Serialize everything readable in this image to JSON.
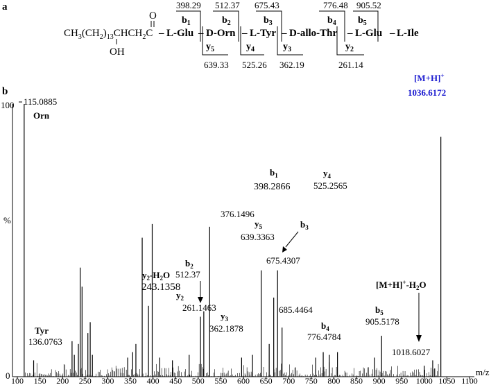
{
  "panel_a": {
    "label": "a",
    "chain": [
      "CH",
      "3",
      "(CH",
      "2",
      ")",
      "13",
      "CHCH",
      "2",
      "C"
    ],
    "oxygen": "O",
    "hydroxyl": "OH",
    "residues": [
      "L-Glu",
      "D-Orn",
      "L-Tyr",
      "D-allo-Thr",
      "L-Glu",
      "L-Ile"
    ],
    "separator": "–",
    "b_ions": [
      {
        "label": "b",
        "sub": "1",
        "value": "398.29"
      },
      {
        "label": "b",
        "sub": "2",
        "value": "512.37"
      },
      {
        "label": "b",
        "sub": "3",
        "value": "675.43"
      },
      {
        "label": "b",
        "sub": "4",
        "value": "776.48"
      },
      {
        "label": "b",
        "sub": "5",
        "value": "905.52"
      }
    ],
    "y_ions": [
      {
        "label": "y",
        "sub": "5",
        "value": "639.33"
      },
      {
        "label": "y",
        "sub": "4",
        "value": "525.26"
      },
      {
        "label": "y",
        "sub": "3",
        "value": "362.19"
      },
      {
        "label": "y",
        "sub": "2",
        "value": "261.14"
      }
    ]
  },
  "panel_b": {
    "label": "b"
  },
  "chart_data": {
    "type": "bar",
    "xlabel": "m/z",
    "ylabel": "%",
    "xlim": [
      100,
      1100
    ],
    "ylim": [
      0,
      100
    ],
    "xticks": [
      100,
      150,
      200,
      250,
      300,
      350,
      400,
      450,
      500,
      550,
      600,
      650,
      700,
      750,
      800,
      850,
      900,
      950,
      1000,
      1050,
      1100
    ],
    "yticks": [
      0,
      100
    ],
    "peaks": [
      {
        "mz": 115.0885,
        "intensity": 100
      },
      {
        "mz": 136.0763,
        "intensity": 6
      },
      {
        "mz": 221,
        "intensity": 13
      },
      {
        "mz": 226,
        "intensity": 8
      },
      {
        "mz": 235,
        "intensity": 12
      },
      {
        "mz": 239,
        "intensity": 40
      },
      {
        "mz": 243.1358,
        "intensity": 33
      },
      {
        "mz": 256,
        "intensity": 16
      },
      {
        "mz": 261.1463,
        "intensity": 20
      },
      {
        "mz": 266,
        "intensity": 8
      },
      {
        "mz": 344,
        "intensity": 7
      },
      {
        "mz": 355,
        "intensity": 9
      },
      {
        "mz": 362.1878,
        "intensity": 12
      },
      {
        "mz": 376.1496,
        "intensity": 51
      },
      {
        "mz": 390,
        "intensity": 26
      },
      {
        "mz": 398.2866,
        "intensity": 56
      },
      {
        "mz": 415,
        "intensity": 7
      },
      {
        "mz": 443,
        "intensity": 6
      },
      {
        "mz": 480,
        "intensity": 8
      },
      {
        "mz": 505,
        "intensity": 22
      },
      {
        "mz": 512.37,
        "intensity": 24
      },
      {
        "mz": 525.2565,
        "intensity": 55
      },
      {
        "mz": 596,
        "intensity": 7
      },
      {
        "mz": 620,
        "intensity": 8
      },
      {
        "mz": 639.3363,
        "intensity": 39
      },
      {
        "mz": 657,
        "intensity": 12
      },
      {
        "mz": 667,
        "intensity": 29
      },
      {
        "mz": 675.4307,
        "intensity": 39
      },
      {
        "mz": 685.4464,
        "intensity": 18
      },
      {
        "mz": 760,
        "intensity": 7
      },
      {
        "mz": 776.4784,
        "intensity": 9
      },
      {
        "mz": 790,
        "intensity": 8
      },
      {
        "mz": 808,
        "intensity": 9
      },
      {
        "mz": 890,
        "intensity": 7
      },
      {
        "mz": 905.5178,
        "intensity": 15
      },
      {
        "mz": 1000,
        "intensity": 4
      },
      {
        "mz": 1018.6027,
        "intensity": 6
      },
      {
        "mz": 1023,
        "intensity": 3
      },
      {
        "mz": 1036.6172,
        "intensity": 88
      }
    ],
    "annotations": [
      {
        "mz": 115.0885,
        "lines": [
          "115.0885"
        ],
        "name": "Orn",
        "arrow": false
      },
      {
        "mz": 136.0763,
        "lines": [
          "136.0763"
        ],
        "ion": "Tyr",
        "arrow": false
      },
      {
        "mz": 243.1358,
        "lines": [
          "243.1358"
        ],
        "ion": "y",
        "sub": "2",
        "suffix": "-H2O",
        "arrow": false
      },
      {
        "mz": 261.1463,
        "lines": [
          "261.1463"
        ],
        "ion": "y",
        "sub": "2",
        "arrow": false
      },
      {
        "mz": 362.1878,
        "lines": [
          "362.1878"
        ],
        "ion": "y",
        "sub": "3",
        "arrow": false
      },
      {
        "mz": 376.1496,
        "lines": [
          "376.1496"
        ],
        "arrow": false
      },
      {
        "mz": 398.2866,
        "lines": [
          "398.2866"
        ],
        "ion": "b",
        "sub": "1",
        "arrow": false
      },
      {
        "mz": 512.37,
        "lines": [
          "512.37"
        ],
        "ion": "b",
        "sub": "2",
        "arrow": true
      },
      {
        "mz": 525.2565,
        "lines": [
          "525.2565"
        ],
        "ion": "y",
        "sub": "4",
        "arrow": false
      },
      {
        "mz": 639.3363,
        "lines": [
          "639.3363"
        ],
        "ion": "y",
        "sub": "5",
        "arrow": false
      },
      {
        "mz": 675.4307,
        "lines": [
          "675.4307"
        ],
        "ion": "b",
        "sub": "3",
        "arrow": true
      },
      {
        "mz": 685.4464,
        "lines": [
          "685.4464"
        ],
        "arrow": false
      },
      {
        "mz": 776.4784,
        "lines": [
          "776.4784"
        ],
        "ion": "b",
        "sub": "4",
        "arrow": false
      },
      {
        "mz": 905.5178,
        "lines": [
          "905.5178"
        ],
        "ion": "b",
        "sub": "5",
        "arrow": false
      },
      {
        "mz": 1018.6027,
        "lines": [
          "1018.6027"
        ],
        "ion": "[M+H]+-H2O",
        "arrow": true
      },
      {
        "mz": 1036.6172,
        "lines": [
          "1036.6172"
        ],
        "ion": "[M+H]+",
        "arrow": false
      }
    ],
    "text": {
      "orn": "Orn",
      "tyr": "Tyr",
      "y2h2o_main": "y",
      "y2h2o_sub": "2",
      "y2h2o_suffix": "-H",
      "y2h2o_sub2": "2",
      "y2h2o_o": "O",
      "mh": "[M+H]",
      "mh_sup": "+",
      "mh_h2o": "[M+H]",
      "mh_h2o_sup": "+",
      "mh_h2o_tail": "-H",
      "mh_h2o_sub": "2",
      "mh_h2o_o": "O"
    },
    "colors": {
      "parent_ion": "#1a1ad0",
      "line": "#000000"
    }
  }
}
